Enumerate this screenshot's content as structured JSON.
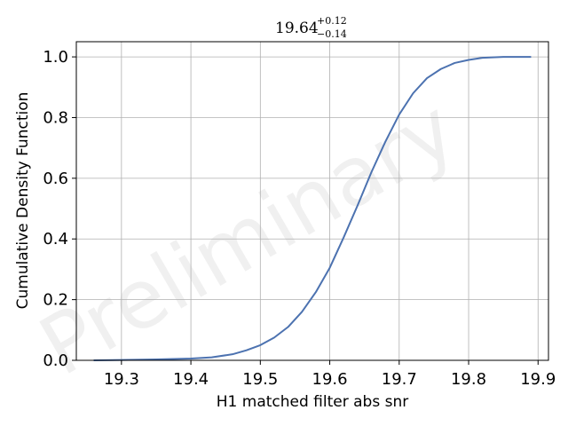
{
  "chart_data": {
    "type": "line",
    "title": {
      "value": "19.64",
      "upper": "+0.12",
      "lower": "−0.14"
    },
    "xlabel": "H1 matched filter abs snr",
    "ylabel": "Cumulative Density Function",
    "xlim": [
      19.235,
      19.915
    ],
    "ylim": [
      0,
      1.05
    ],
    "xticks": [
      19.3,
      19.4,
      19.5,
      19.6,
      19.7,
      19.8,
      19.9
    ],
    "xtick_labels": [
      "19.3",
      "19.4",
      "19.5",
      "19.6",
      "19.7",
      "19.8",
      "19.9"
    ],
    "yticks": [
      0,
      0.2,
      0.4,
      0.6,
      0.8,
      1.0
    ],
    "ytick_labels": [
      "0.0",
      "0.2",
      "0.4",
      "0.6",
      "0.8",
      "1.0"
    ],
    "grid": true,
    "watermark": "Preliminary",
    "line_color": "#4c72b0",
    "series": [
      {
        "x": [
          19.26,
          19.3,
          19.35,
          19.4,
          19.43,
          19.46,
          19.48,
          19.5,
          19.52,
          19.54,
          19.56,
          19.58,
          19.6,
          19.62,
          19.64,
          19.66,
          19.68,
          19.7,
          19.72,
          19.74,
          19.76,
          19.78,
          19.8,
          19.82,
          19.85,
          19.89
        ],
        "y": [
          0.0,
          0.001,
          0.003,
          0.006,
          0.01,
          0.02,
          0.033,
          0.05,
          0.075,
          0.11,
          0.16,
          0.225,
          0.305,
          0.405,
          0.51,
          0.62,
          0.72,
          0.81,
          0.88,
          0.93,
          0.96,
          0.98,
          0.99,
          0.997,
          1.0,
          1.0
        ]
      }
    ]
  }
}
